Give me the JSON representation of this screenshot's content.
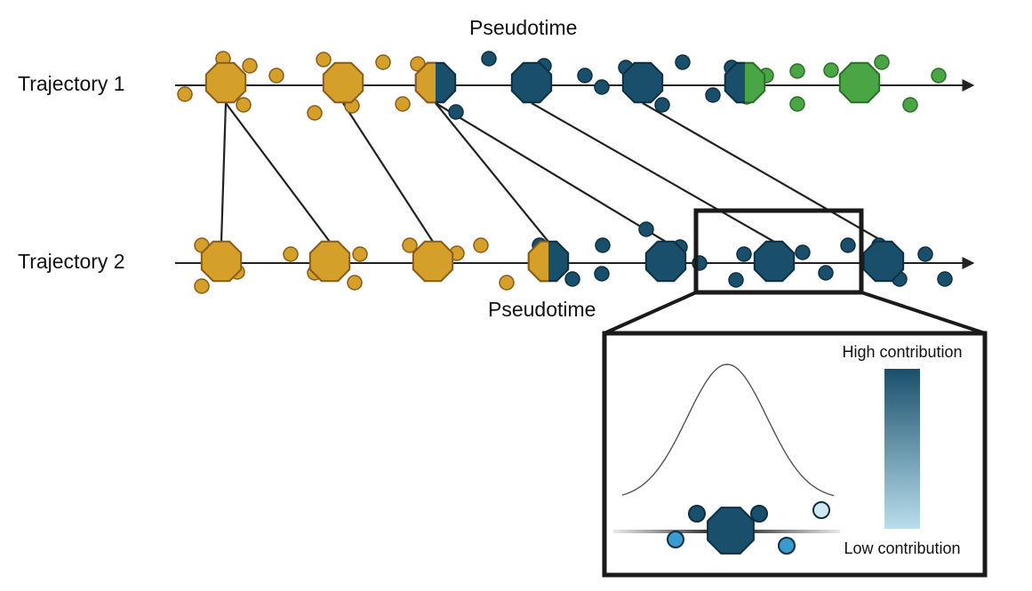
{
  "top_axis_label": "Pseudotime",
  "bottom_axis_label": "Pseudotime",
  "trajectory_1_label": "Trajectory 1",
  "trajectory_2_label": "Trajectory 2",
  "colorbar_high_label": "High contribution",
  "colorbar_low_label": "Low contribution"
}
